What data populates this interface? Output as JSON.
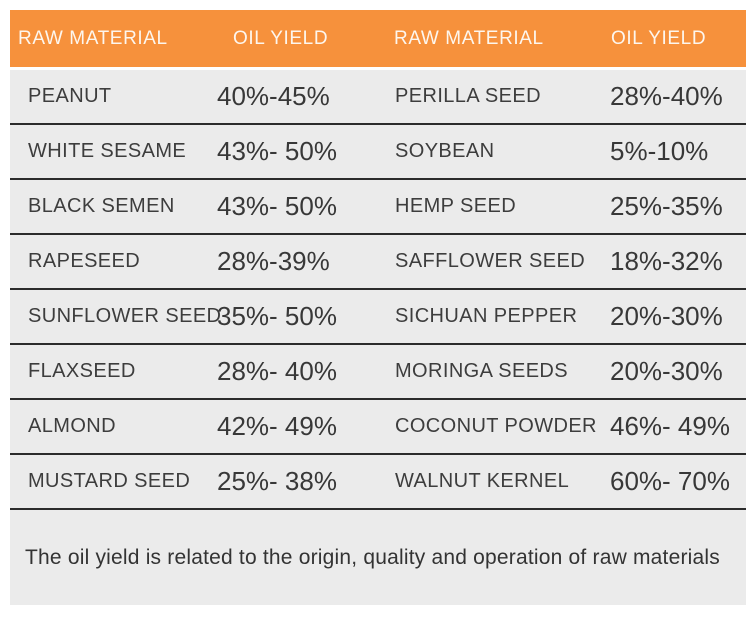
{
  "header": {
    "columns": [
      "RAW MATERIAL",
      "OIL YIELD",
      "RAW MATERIAL",
      "OIL YIELD"
    ]
  },
  "rows": [
    {
      "material_left": "PEANUT",
      "yield_left": "40%-45%",
      "material_right": "PERILLA SEED",
      "yield_right": "28%-40%"
    },
    {
      "material_left": "WHITE SESAME",
      "yield_left": "43%- 50%",
      "material_right": "SOYBEAN",
      "yield_right": "5%-10%"
    },
    {
      "material_left": "BLACK SEMEN",
      "yield_left": "43%- 50%",
      "material_right": "HEMP SEED",
      "yield_right": "25%-35%"
    },
    {
      "material_left": "RAPESEED",
      "yield_left": "28%-39%",
      "material_right": "SAFFLOWER SEED",
      "yield_right": "18%-32%"
    },
    {
      "material_left": "SUNFLOWER SEED",
      "yield_left": "35%- 50%",
      "material_right": "SICHUAN PEPPER",
      "yield_right": "20%-30%"
    },
    {
      "material_left": "FLAXSEED",
      "yield_left": "28%- 40%",
      "material_right": "MORINGA SEEDS",
      "yield_right": "20%-30%"
    },
    {
      "material_left": "ALMOND",
      "yield_left": "42%- 49%",
      "material_right": "COCONUT POWDER",
      "yield_right": "46%- 49%"
    },
    {
      "material_left": "MUSTARD SEED",
      "yield_left": "25%- 38%",
      "material_right": "WALNUT KERNEL",
      "yield_right": "60%- 70%"
    }
  ],
  "footer": {
    "note": "The oil yield is related to the origin, quality and operation of raw materials"
  },
  "colors": {
    "header_bg": "#F6913C",
    "header_text": "#FDF6EE",
    "row_bg": "#EBEBEB",
    "divider": "#2B2B2B",
    "body_text": "#3D3D3D"
  },
  "chart_data": {
    "type": "table",
    "title": "Oil yield by raw material",
    "columns": [
      "RAW MATERIAL",
      "OIL YIELD",
      "RAW MATERIAL",
      "OIL YIELD"
    ],
    "rows": [
      [
        "PEANUT",
        "40%-45%",
        "PERILLA SEED",
        "28%-40%"
      ],
      [
        "WHITE SESAME",
        "43%- 50%",
        "SOYBEAN",
        "5%-10%"
      ],
      [
        "BLACK SEMEN",
        "43%- 50%",
        "HEMP SEED",
        "25%-35%"
      ],
      [
        "RAPESEED",
        "28%-39%",
        "SAFFLOWER SEED",
        "18%-32%"
      ],
      [
        "SUNFLOWER SEED",
        "35%- 50%",
        "SICHUAN PEPPER",
        "20%-30%"
      ],
      [
        "FLAXSEED",
        "28%- 40%",
        "MORINGA SEEDS",
        "20%-30%"
      ],
      [
        "ALMOND",
        "42%- 49%",
        "COCONUT POWDER",
        "46%- 49%"
      ],
      [
        "MUSTARD SEED",
        "25%- 38%",
        "WALNUT KERNEL",
        "60%- 70%"
      ]
    ],
    "note": "The oil yield is related to the origin, quality and operation of raw materials"
  }
}
